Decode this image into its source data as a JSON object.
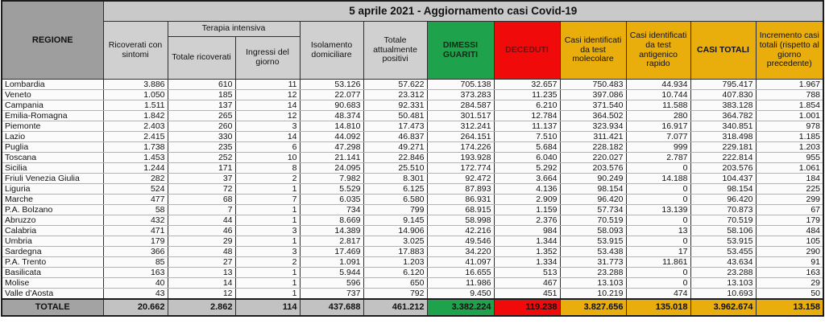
{
  "banner_title": "5 aprile 2021 - Aggiornamento casi Covid-19",
  "colors": {
    "green": "#1ea24b",
    "red": "#f00a0a",
    "yellow": "#e9ad0c",
    "banner_gray": "#c9c9c9",
    "header_gray": "#d0d0d0",
    "regione_gray": "#9e9e9e",
    "total_gray": "#c2c2c2"
  },
  "table": {
    "headers": {
      "regione": "REGIONE",
      "ricoverati": "Ricoverati con sintomi",
      "terapia_intensiva_group": "Terapia intensiva",
      "ti_totale": "Totale ricoverati",
      "ti_ingressi": "Ingressi del giorno",
      "isolamento": "Isolamento domiciliare",
      "positivi": "Totale attualmente positivi",
      "guariti": "DIMESSI GUARITI",
      "deceduti": "DECEDUTI",
      "molecolare": "Casi identificati da test molecolare",
      "antigenico": "Casi identificati da test antigenico rapido",
      "casi_totali": "CASI TOTALI",
      "incremento": "Incremento casi totali (rispetto al giorno precedente)"
    },
    "column_keys": [
      "regione",
      "ricoverati",
      "ti-totale",
      "ti-ingressi",
      "isolamento",
      "positivi",
      "guariti",
      "deceduti",
      "molecolare",
      "antigenico",
      "casi-totali",
      "incremento"
    ],
    "rows": [
      [
        "Lombardia",
        "3.886",
        "610",
        "11",
        "53.126",
        "57.622",
        "705.138",
        "32.657",
        "750.483",
        "44.934",
        "795.417",
        "1.967"
      ],
      [
        "Veneto",
        "1.050",
        "185",
        "12",
        "22.077",
        "23.312",
        "373.283",
        "11.235",
        "397.086",
        "10.744",
        "407.830",
        "788"
      ],
      [
        "Campania",
        "1.511",
        "137",
        "14",
        "90.683",
        "92.331",
        "284.587",
        "6.210",
        "371.540",
        "11.588",
        "383.128",
        "1.854"
      ],
      [
        "Emilia-Romagna",
        "1.842",
        "265",
        "12",
        "48.374",
        "50.481",
        "301.517",
        "12.784",
        "364.502",
        "280",
        "364.782",
        "1.001"
      ],
      [
        "Piemonte",
        "2.403",
        "260",
        "3",
        "14.810",
        "17.473",
        "312.241",
        "11.137",
        "323.934",
        "16.917",
        "340.851",
        "978"
      ],
      [
        "Lazio",
        "2.415",
        "330",
        "14",
        "44.092",
        "46.837",
        "264.151",
        "7.510",
        "311.421",
        "7.077",
        "318.498",
        "1.185"
      ],
      [
        "Puglia",
        "1.738",
        "235",
        "6",
        "47.298",
        "49.271",
        "174.226",
        "5.684",
        "228.182",
        "999",
        "229.181",
        "1.203"
      ],
      [
        "Toscana",
        "1.453",
        "252",
        "10",
        "21.141",
        "22.846",
        "193.928",
        "6.040",
        "220.027",
        "2.787",
        "222.814",
        "955"
      ],
      [
        "Sicilia",
        "1.244",
        "171",
        "8",
        "24.095",
        "25.510",
        "172.774",
        "5.292",
        "203.576",
        "0",
        "203.576",
        "1.061"
      ],
      [
        "Friuli Venezia Giulia",
        "282",
        "37",
        "2",
        "7.982",
        "8.301",
        "92.472",
        "3.664",
        "90.249",
        "14.188",
        "104.437",
        "184"
      ],
      [
        "Liguria",
        "524",
        "72",
        "1",
        "5.529",
        "6.125",
        "87.893",
        "4.136",
        "98.154",
        "0",
        "98.154",
        "225"
      ],
      [
        "Marche",
        "477",
        "68",
        "7",
        "6.035",
        "6.580",
        "86.931",
        "2.909",
        "96.420",
        "0",
        "96.420",
        "299"
      ],
      [
        "P.A. Bolzano",
        "58",
        "7",
        "1",
        "734",
        "799",
        "68.915",
        "1.159",
        "57.734",
        "13.139",
        "70.873",
        "67"
      ],
      [
        "Abruzzo",
        "432",
        "44",
        "1",
        "8.669",
        "9.145",
        "58.998",
        "2.376",
        "70.519",
        "0",
        "70.519",
        "179"
      ],
      [
        "Calabria",
        "471",
        "46",
        "3",
        "14.389",
        "14.906",
        "42.216",
        "984",
        "58.093",
        "13",
        "58.106",
        "484"
      ],
      [
        "Umbria",
        "179",
        "29",
        "1",
        "2.817",
        "3.025",
        "49.546",
        "1.344",
        "53.915",
        "0",
        "53.915",
        "105"
      ],
      [
        "Sardegna",
        "366",
        "48",
        "3",
        "17.469",
        "17.883",
        "34.220",
        "1.352",
        "53.438",
        "17",
        "53.455",
        "290"
      ],
      [
        "P.A. Trento",
        "85",
        "27",
        "2",
        "1.091",
        "1.203",
        "41.097",
        "1.334",
        "31.773",
        "11.861",
        "43.634",
        "91"
      ],
      [
        "Basilicata",
        "163",
        "13",
        "1",
        "5.944",
        "6.120",
        "16.655",
        "513",
        "23.288",
        "0",
        "23.288",
        "163"
      ],
      [
        "Molise",
        "40",
        "14",
        "1",
        "596",
        "650",
        "11.986",
        "467",
        "13.103",
        "0",
        "13.103",
        "29"
      ],
      [
        "Valle d'Aosta",
        "43",
        "12",
        "1",
        "737",
        "792",
        "9.450",
        "451",
        "10.219",
        "474",
        "10.693",
        "50"
      ]
    ],
    "total_row": [
      "TOTALE",
      "20.662",
      "2.862",
      "114",
      "437.688",
      "461.212",
      "3.382.224",
      "119.238",
      "3.827.656",
      "135.018",
      "3.962.674",
      "13.158"
    ]
  }
}
